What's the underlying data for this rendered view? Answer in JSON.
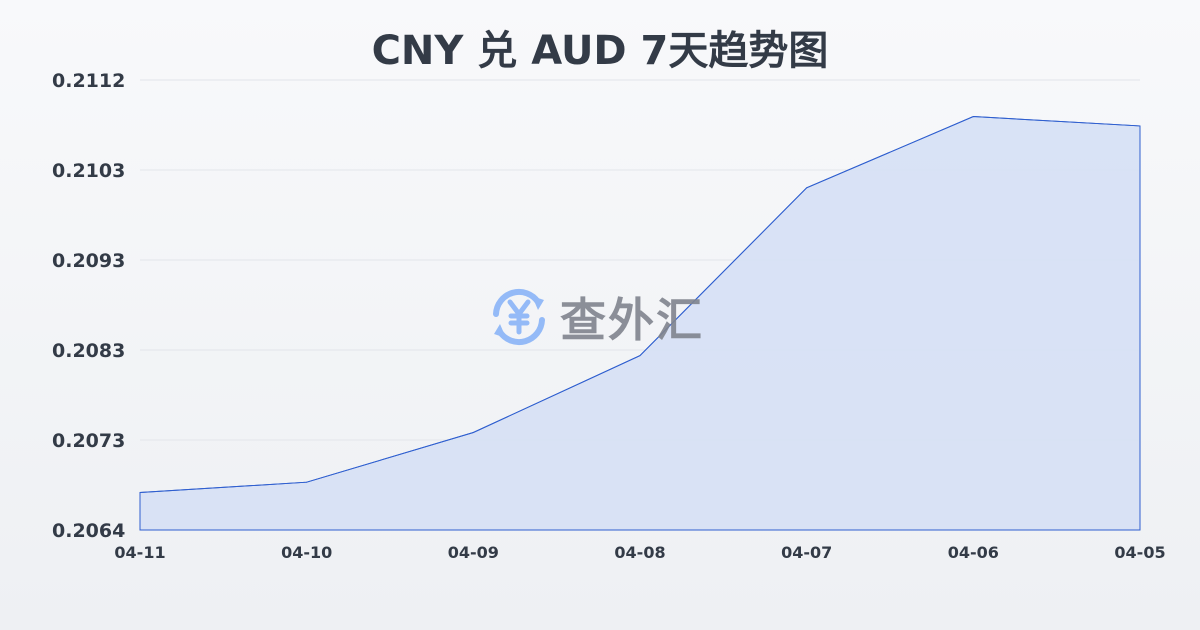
{
  "chart_data": {
    "type": "area",
    "title": "CNY 兑 AUD 7天趋势图",
    "categories": [
      "04-11",
      "04-10",
      "04-09",
      "04-08",
      "04-07",
      "04-06",
      "04-05"
    ],
    "values": [
      0.2068,
      0.20691,
      0.20744,
      0.20826,
      0.21005,
      0.21081,
      0.21071
    ],
    "yticks": [
      "0.2064",
      "0.2073",
      "0.2083",
      "0.2093",
      "0.2103",
      "0.2112"
    ],
    "ylim": [
      0.2064,
      0.2112
    ],
    "grid": true,
    "line_color": "#2f5fcf",
    "fill_color": "#d6e0f5"
  },
  "watermark": {
    "text": "查外汇",
    "icon": "yen-exchange-icon",
    "color": "#8ab4f8"
  }
}
